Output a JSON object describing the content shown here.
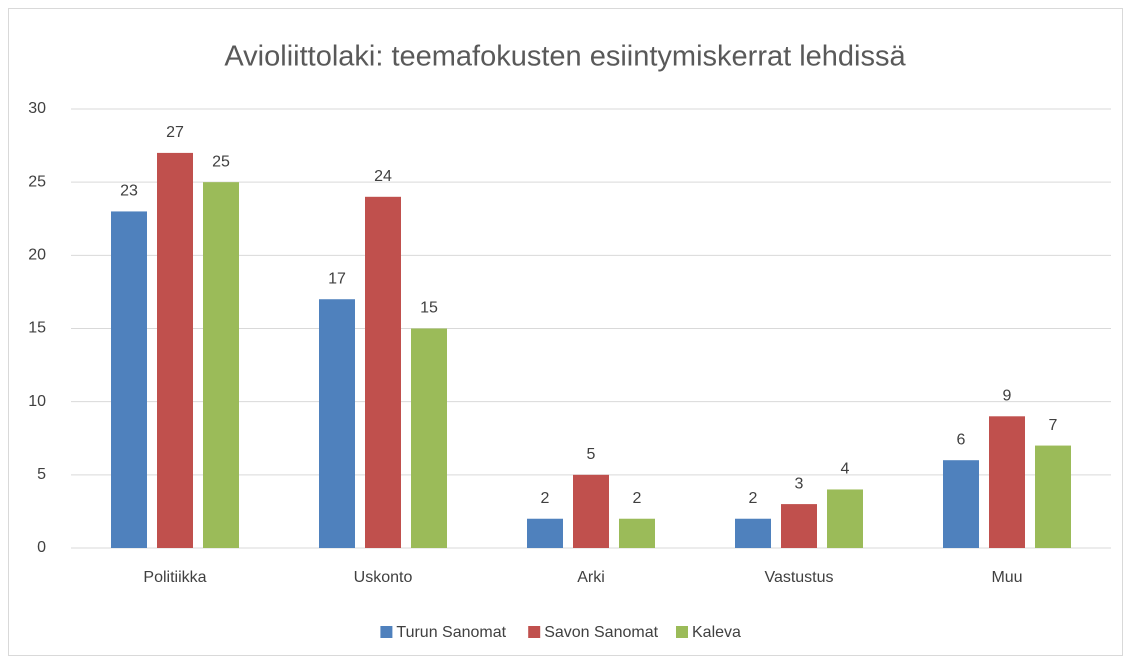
{
  "chart_data": {
    "type": "bar",
    "title": "Avioliittolaki: teemafokusten esiintymiskerrat lehdissä",
    "categories": [
      "Politiikka",
      "Uskonto",
      "Arki",
      "Vastustus",
      "Muu"
    ],
    "series": [
      {
        "name": "Turun Sanomat",
        "color": "#4f81bd",
        "values": [
          23,
          17,
          2,
          2,
          6
        ]
      },
      {
        "name": "Savon Sanomat",
        "color": "#c0504d",
        "values": [
          27,
          24,
          5,
          3,
          9
        ]
      },
      {
        "name": "Kaleva",
        "color": "#9bbb59",
        "values": [
          25,
          15,
          2,
          4,
          7
        ]
      }
    ],
    "ylim": [
      0,
      30
    ],
    "yticks": [
      0,
      5,
      10,
      15,
      20,
      25,
      30
    ],
    "grid": true,
    "legend": "bottom"
  }
}
